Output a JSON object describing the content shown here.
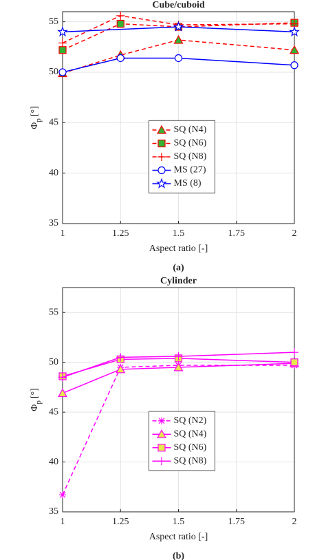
{
  "chart_data": [
    {
      "type": "line",
      "title": "Cube/cuboid",
      "caption": "(a)",
      "xlabel": "Aspect ratio [-]",
      "ylabel": {
        "symbol": "Φ",
        "subscript": "p",
        "unit": "[°]"
      },
      "x": [
        1,
        1.25,
        1.5,
        2
      ],
      "xlim": [
        1,
        2
      ],
      "xticks": [
        1,
        1.25,
        1.5,
        1.75,
        2
      ],
      "ylim": [
        35,
        56
      ],
      "yticks": [
        35,
        40,
        45,
        50,
        55
      ],
      "grid": true,
      "legend": "center",
      "series": [
        {
          "name": "SQ (N4)",
          "color": "#ff0000",
          "linestyle": "dashed",
          "marker": "triangle",
          "marker_fill": "#33b233",
          "values": [
            49.9,
            51.7,
            53.2,
            52.2
          ]
        },
        {
          "name": "SQ (N6)",
          "color": "#ff0000",
          "linestyle": "dashed",
          "marker": "square",
          "marker_fill": "#33b233",
          "values": [
            52.2,
            54.8,
            54.5,
            54.9
          ]
        },
        {
          "name": "SQ (N8)",
          "color": "#ff0000",
          "linestyle": "dashed",
          "marker": "plus",
          "marker_fill": "none",
          "values": [
            52.9,
            55.6,
            54.7,
            54.8
          ]
        },
        {
          "name": "MS (27)",
          "color": "#0000ff",
          "linestyle": "solid",
          "marker": "circle",
          "marker_fill": "#ffffff",
          "values": [
            50.0,
            51.4,
            51.4,
            50.7
          ]
        },
        {
          "name": "MS (8)",
          "color": "#0000ff",
          "linestyle": "solid",
          "marker": "star",
          "marker_fill": "#ffffff",
          "x": [
            1,
            1.5,
            2
          ],
          "values": [
            54.0,
            54.5,
            54.0
          ]
        }
      ]
    },
    {
      "type": "line",
      "title": "Cylinder",
      "caption": "(b)",
      "xlabel": "Aspect ratio [-]",
      "ylabel": {
        "symbol": "Φ",
        "subscript": "p",
        "unit": "[°]"
      },
      "x": [
        1,
        1.25,
        1.5,
        2
      ],
      "xlim": [
        1,
        2
      ],
      "xticks": [
        1,
        1.25,
        1.5,
        1.75,
        2
      ],
      "ylim": [
        35,
        57.5
      ],
      "yticks": [
        35,
        40,
        45,
        50,
        55
      ],
      "grid": true,
      "legend": "lower center",
      "series": [
        {
          "name": "SQ (N2)",
          "color": "#ff00ff",
          "linestyle": "dashed",
          "marker": "asterisk",
          "marker_fill": "none",
          "values": [
            36.7,
            49.5,
            49.7,
            49.7
          ]
        },
        {
          "name": "SQ (N4)",
          "color": "#ff00ff",
          "linestyle": "solid",
          "marker": "triangle",
          "marker_fill": "#e6e64d",
          "values": [
            46.9,
            49.3,
            49.5,
            49.9
          ]
        },
        {
          "name": "SQ (N6)",
          "color": "#ff00ff",
          "linestyle": "solid",
          "marker": "square",
          "marker_fill": "#e6e64d",
          "values": [
            48.6,
            50.3,
            50.4,
            50.0
          ]
        },
        {
          "name": "SQ (N8)",
          "color": "#ff00ff",
          "linestyle": "solid",
          "marker": "plus",
          "marker_fill": "none",
          "values": [
            48.5,
            50.5,
            50.6,
            51.0
          ]
        }
      ]
    }
  ]
}
